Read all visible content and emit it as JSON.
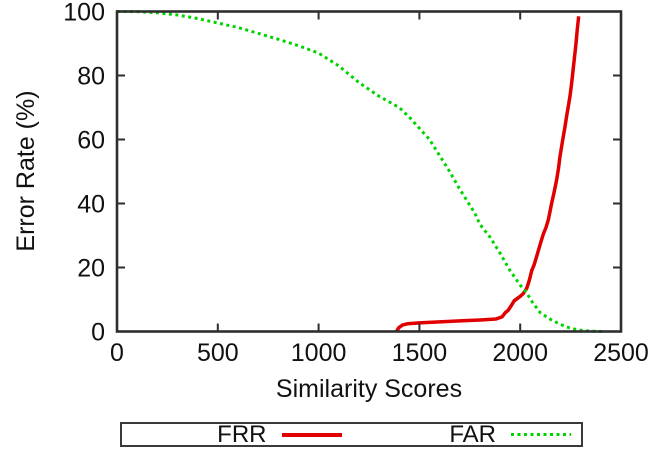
{
  "chart_data": {
    "type": "line",
    "title": "",
    "xlabel": "Similarity Scores",
    "ylabel": "Error Rate (%)",
    "xlim": [
      0,
      2500
    ],
    "ylim": [
      0,
      100
    ],
    "x_ticks": [
      0,
      500,
      1000,
      1500,
      2000,
      2500
    ],
    "y_ticks": [
      0,
      20,
      40,
      60,
      80,
      100
    ],
    "grid": false,
    "legend_position": "below-plot-boxed",
    "series": [
      {
        "name": "FRR",
        "color": "#e00000",
        "style": "solid",
        "points": [
          [
            1386,
            0
          ],
          [
            1398,
            1.2
          ],
          [
            1415,
            2.0
          ],
          [
            1440,
            2.4
          ],
          [
            1500,
            2.7
          ],
          [
            1600,
            3.0
          ],
          [
            1700,
            3.3
          ],
          [
            1800,
            3.6
          ],
          [
            1880,
            3.9
          ],
          [
            1910,
            4.6
          ],
          [
            1925,
            5.8
          ],
          [
            1940,
            6.6
          ],
          [
            1955,
            8.0
          ],
          [
            1970,
            9.6
          ],
          [
            2000,
            11.0
          ],
          [
            2015,
            11.8
          ],
          [
            2032,
            13.5
          ],
          [
            2045,
            16.0
          ],
          [
            2057,
            19.0
          ],
          [
            2070,
            21.0
          ],
          [
            2082,
            23.5
          ],
          [
            2100,
            27.5
          ],
          [
            2115,
            30.5
          ],
          [
            2128,
            32.5
          ],
          [
            2140,
            35.0
          ],
          [
            2156,
            40.0
          ],
          [
            2168,
            43.5
          ],
          [
            2181,
            47.5
          ],
          [
            2190,
            51.0
          ],
          [
            2197,
            54.5
          ],
          [
            2210,
            59.5
          ],
          [
            2222,
            64.0
          ],
          [
            2232,
            68.0
          ],
          [
            2239,
            70.5
          ],
          [
            2248,
            74.0
          ],
          [
            2255,
            77.5
          ],
          [
            2263,
            82.0
          ],
          [
            2270,
            86.0
          ],
          [
            2277,
            90.0
          ],
          [
            2283,
            94.5
          ],
          [
            2290,
            98.5
          ]
        ]
      },
      {
        "name": "FAR",
        "color": "#00d400",
        "style": "dotted",
        "points": [
          [
            0,
            100
          ],
          [
            60,
            100
          ],
          [
            120,
            99.9
          ],
          [
            200,
            99.6
          ],
          [
            300,
            98.9
          ],
          [
            400,
            97.8
          ],
          [
            500,
            96.4
          ],
          [
            600,
            95.0
          ],
          [
            700,
            93.2
          ],
          [
            800,
            91.3
          ],
          [
            900,
            89.3
          ],
          [
            1000,
            87.0
          ],
          [
            1100,
            83.0
          ],
          [
            1200,
            77.8
          ],
          [
            1300,
            73.5
          ],
          [
            1400,
            70.0
          ],
          [
            1450,
            67.0
          ],
          [
            1500,
            63.5
          ],
          [
            1550,
            60.0
          ],
          [
            1600,
            55.0
          ],
          [
            1650,
            50.0
          ],
          [
            1700,
            44.5
          ],
          [
            1775,
            37.0
          ],
          [
            1800,
            33.5
          ],
          [
            1850,
            29.5
          ],
          [
            1900,
            24.5
          ],
          [
            1950,
            19.0
          ],
          [
            2000,
            14.5
          ],
          [
            2030,
            12.3
          ],
          [
            2060,
            9.2
          ],
          [
            2100,
            5.8
          ],
          [
            2150,
            3.8
          ],
          [
            2200,
            2.2
          ],
          [
            2250,
            1.0
          ],
          [
            2300,
            0.4
          ],
          [
            2350,
            0.1
          ],
          [
            2420,
            0
          ]
        ]
      }
    ]
  },
  "legend": {
    "items": [
      {
        "label": "FRR",
        "color": "#e00000",
        "style": "solid"
      },
      {
        "label": "FAR",
        "color": "#00d400",
        "style": "dotted"
      }
    ]
  },
  "colors": {
    "axis": "#2e2e2e",
    "text": "#111111",
    "background": "#ffffff",
    "frr": "#e00000",
    "far": "#00d400"
  }
}
